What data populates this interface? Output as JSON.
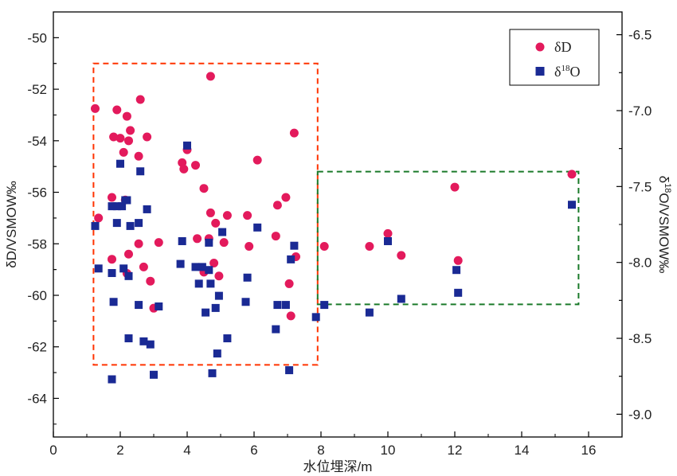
{
  "chart_data": {
    "type": "scatter",
    "xlabel": "水位埋深/m",
    "ylabel_left": "δD/VSMOW‰",
    "ylabel_right": {
      "prefix": "δ",
      "sup": "18",
      "suffix": "O/VSMOW‰"
    },
    "xlim": [
      0,
      17
    ],
    "ylim_left": [
      -65.5,
      -49
    ],
    "ylim_right": [
      -9.15,
      -6.35
    ],
    "x_ticks": [
      0,
      2,
      4,
      6,
      8,
      10,
      12,
      14,
      16
    ],
    "y_left_ticks": [
      -64,
      -62,
      -60,
      -58,
      -56,
      -54,
      -52,
      -50
    ],
    "y_right_ticks": [
      "-9.0",
      "-8.5",
      "-8.0",
      "-7.5",
      "-7.0",
      "-6.5"
    ],
    "legend": {
      "position": "top-right",
      "entries": [
        {
          "label_prefix": "δD",
          "label_sup": "",
          "label_suffix": ""
        },
        {
          "label_prefix": "δ",
          "label_sup": "18",
          "label_suffix": "O"
        }
      ]
    },
    "colors": {
      "dD": "#e31a5c",
      "d18O": "#1a2a94",
      "red_box": "#ff3300",
      "green_box": "#1a7a2a"
    },
    "series": [
      {
        "axis": "left",
        "marker": "circle",
        "points": [
          [
            1.25,
            -52.75
          ],
          [
            1.35,
            -57.0
          ],
          [
            1.75,
            -56.2
          ],
          [
            1.8,
            -53.85
          ],
          [
            1.9,
            -52.8
          ],
          [
            2.0,
            -53.9
          ],
          [
            2.1,
            -54.45
          ],
          [
            2.15,
            -56.3
          ],
          [
            2.2,
            -53.05
          ],
          [
            2.25,
            -54.0
          ],
          [
            2.3,
            -53.6
          ],
          [
            2.55,
            -54.6
          ],
          [
            2.6,
            -52.4
          ],
          [
            2.8,
            -53.85
          ],
          [
            1.75,
            -58.6
          ],
          [
            2.2,
            -59.15
          ],
          [
            2.25,
            -58.4
          ],
          [
            2.55,
            -58.0
          ],
          [
            2.7,
            -58.9
          ],
          [
            2.9,
            -59.45
          ],
          [
            3.0,
            -60.5
          ],
          [
            3.15,
            -57.95
          ],
          [
            3.85,
            -54.85
          ],
          [
            3.9,
            -55.1
          ],
          [
            4.0,
            -54.35
          ],
          [
            4.25,
            -54.95
          ],
          [
            4.3,
            -57.8
          ],
          [
            4.5,
            -55.85
          ],
          [
            4.5,
            -59.1
          ],
          [
            4.7,
            -51.5
          ],
          [
            4.7,
            -56.8
          ],
          [
            4.65,
            -57.8
          ],
          [
            4.8,
            -58.75
          ],
          [
            4.85,
            -57.2
          ],
          [
            4.95,
            -59.25
          ],
          [
            5.1,
            -57.95
          ],
          [
            5.2,
            -56.9
          ],
          [
            5.8,
            -56.9
          ],
          [
            5.85,
            -58.1
          ],
          [
            6.1,
            -54.75
          ],
          [
            6.65,
            -57.7
          ],
          [
            6.7,
            -56.5
          ],
          [
            6.95,
            -56.2
          ],
          [
            7.05,
            -59.55
          ],
          [
            7.1,
            -60.8
          ],
          [
            7.2,
            -53.7
          ],
          [
            7.25,
            -58.5
          ],
          [
            8.1,
            -58.1
          ],
          [
            9.45,
            -58.1
          ],
          [
            10.0,
            -57.6
          ],
          [
            10.4,
            -58.45
          ],
          [
            12.0,
            -55.8
          ],
          [
            12.1,
            -58.65
          ],
          [
            15.5,
            -55.3
          ]
        ]
      },
      {
        "axis": "right",
        "marker": "square",
        "points": [
          [
            1.25,
            -7.76
          ],
          [
            1.35,
            -8.04
          ],
          [
            1.75,
            -8.77
          ],
          [
            1.75,
            -7.63
          ],
          [
            1.75,
            -8.07
          ],
          [
            1.8,
            -8.26
          ],
          [
            1.9,
            -7.63
          ],
          [
            1.9,
            -7.74
          ],
          [
            2.0,
            -7.35
          ],
          [
            2.05,
            -7.63
          ],
          [
            2.1,
            -8.04
          ],
          [
            2.15,
            -7.59
          ],
          [
            2.2,
            -7.59
          ],
          [
            2.25,
            -8.5
          ],
          [
            2.25,
            -8.09
          ],
          [
            2.3,
            -7.76
          ],
          [
            2.55,
            -8.28
          ],
          [
            2.55,
            -7.74
          ],
          [
            2.6,
            -7.4
          ],
          [
            2.7,
            -8.52
          ],
          [
            2.8,
            -7.65
          ],
          [
            2.9,
            -8.54
          ],
          [
            3.0,
            -8.74
          ],
          [
            3.15,
            -8.29
          ],
          [
            3.8,
            -8.01
          ],
          [
            3.85,
            -7.86
          ],
          [
            4.0,
            -7.23
          ],
          [
            4.25,
            -8.03
          ],
          [
            4.35,
            -8.14
          ],
          [
            4.45,
            -8.03
          ],
          [
            4.55,
            -8.33
          ],
          [
            4.65,
            -7.87
          ],
          [
            4.65,
            -8.05
          ],
          [
            4.7,
            -8.14
          ],
          [
            4.75,
            -8.73
          ],
          [
            4.85,
            -8.3
          ],
          [
            4.9,
            -8.6
          ],
          [
            4.95,
            -8.22
          ],
          [
            5.05,
            -7.8
          ],
          [
            5.2,
            -8.5
          ],
          [
            5.75,
            -8.26
          ],
          [
            5.8,
            -8.1
          ],
          [
            6.1,
            -7.77
          ],
          [
            6.65,
            -8.44
          ],
          [
            6.7,
            -8.28
          ],
          [
            6.95,
            -8.28
          ],
          [
            7.05,
            -8.71
          ],
          [
            7.1,
            -7.98
          ],
          [
            7.2,
            -7.89
          ],
          [
            7.85,
            -8.36
          ],
          [
            8.1,
            -8.28
          ],
          [
            9.45,
            -8.33
          ],
          [
            10.0,
            -7.86
          ],
          [
            10.4,
            -8.24
          ],
          [
            12.05,
            -8.05
          ],
          [
            12.1,
            -8.2
          ],
          [
            15.5,
            -7.62
          ]
        ]
      }
    ],
    "annotations": [
      {
        "type": "dashed-box",
        "color": "red",
        "x_range": [
          1.2,
          7.9
        ],
        "y_left_range": [
          -62.7,
          -51.0
        ]
      },
      {
        "type": "dashed-box",
        "color": "green",
        "x_range": [
          7.9,
          15.7
        ],
        "y_left_range": [
          -60.35,
          -55.2
        ]
      }
    ]
  }
}
